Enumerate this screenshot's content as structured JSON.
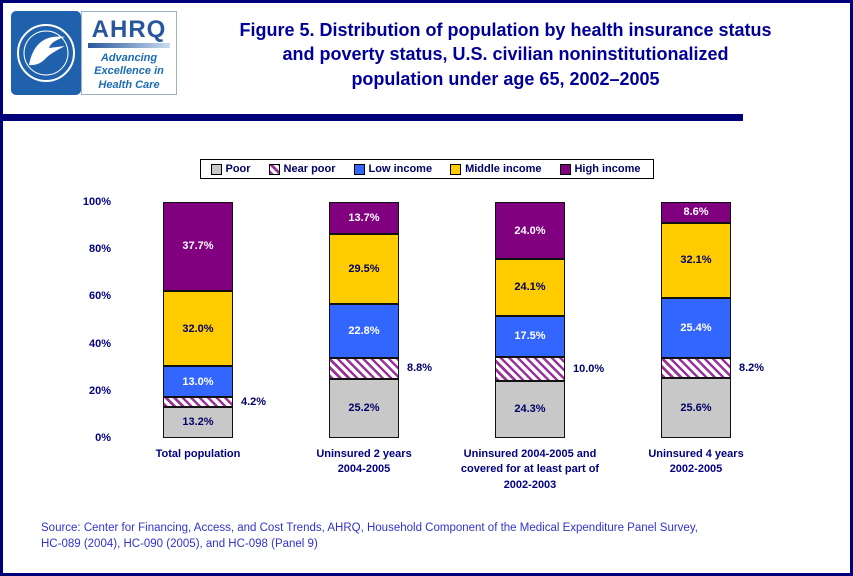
{
  "colors": {
    "border": "#00007B",
    "rule": "#00007B",
    "title": "#000099",
    "axis": "#000080",
    "category": "#000080",
    "legend_text": "#000066",
    "source": "#3333CC"
  },
  "header": {
    "title_lines": [
      "Figure 5. Distribution of population by health insurance status",
      "and poverty status, U.S. civilian noninstitutionalized",
      "population under age 65, 2002–2005"
    ],
    "ahrq": {
      "name": "AHRQ",
      "tagline_lines": [
        "Advancing",
        "Excellence in",
        "Health Care"
      ]
    }
  },
  "chart_data": {
    "type": "bar",
    "stacked": true,
    "ylim": [
      0,
      100
    ],
    "grid": false,
    "legend_position": "top",
    "yticks": [
      {
        "label": "0%",
        "value": 0
      },
      {
        "label": "20%",
        "value": 20
      },
      {
        "label": "40%",
        "value": 40
      },
      {
        "label": "60%",
        "value": 60
      },
      {
        "label": "80%",
        "value": 80
      },
      {
        "label": "100%",
        "value": 100
      }
    ],
    "categories": [
      {
        "label_lines": [
          "Total population"
        ]
      },
      {
        "label_lines": [
          "Uninsured 2 years",
          "2004-2005"
        ]
      },
      {
        "label_lines": [
          "Uninsured 2004-2005 and",
          "covered for at least part of",
          "2002-2003"
        ]
      },
      {
        "label_lines": [
          "Uninsured 4 years",
          "2002-2005"
        ]
      }
    ],
    "series": [
      {
        "name": "Poor",
        "fill": "#C8C8C8",
        "label_color": "#000066",
        "label_placement": "inside",
        "values": [
          13.2,
          25.2,
          24.3,
          25.6
        ]
      },
      {
        "name": "Near poor",
        "fill": "hatch",
        "hatch_colors": [
          "#993399",
          "#FFFFFF"
        ],
        "label_color": "#000066",
        "label_placement": "outside",
        "values": [
          4.2,
          8.8,
          10.0,
          8.2
        ]
      },
      {
        "name": "Low income",
        "fill": "#3366FF",
        "label_color": "#FFFFFF",
        "label_placement": "inside",
        "values": [
          13.0,
          22.8,
          17.5,
          25.4
        ]
      },
      {
        "name": "Middle income",
        "fill": "#FFCC00",
        "label_color": "#000066",
        "label_placement": "inside",
        "values": [
          32.0,
          29.5,
          24.1,
          32.1
        ]
      },
      {
        "name": "High income",
        "fill": "#800080",
        "label_color": "#FFFFFF",
        "label_placement": "inside",
        "values": [
          37.7,
          13.7,
          24.0,
          8.6
        ]
      }
    ]
  },
  "source": {
    "lines": [
      "Source: Center for Financing, Access, and Cost Trends, AHRQ, Household Component of the Medical Expenditure Panel Survey,",
      "HC-089 (2004), HC-090 (2005), and HC-098 (Panel 9)"
    ]
  }
}
